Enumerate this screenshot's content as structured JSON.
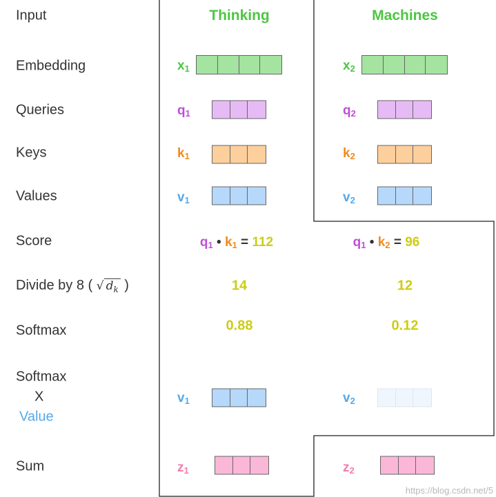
{
  "rows": {
    "input": "Input",
    "embedding": "Embedding",
    "queries": "Queries",
    "keys": "Keys",
    "values": "Values",
    "score": "Score",
    "divide_prefix": "Divide by 8 (",
    "divide_sqrt": "d",
    "divide_sqrt_sub": "k",
    "divide_suffix": ")",
    "softmax": "Softmax",
    "softmax_value_1": "Softmax",
    "softmax_value_2": "X",
    "softmax_value_3": "Value",
    "sum": "Sum"
  },
  "columns": {
    "thinking": {
      "header": "Thinking",
      "x": "x",
      "x_sub": "1",
      "q": "q",
      "q_sub": "1",
      "k": "k",
      "k_sub": "1",
      "v": "v",
      "v_sub": "1",
      "score_q": "q",
      "score_q_sub": "1",
      "score_dot": "•",
      "score_k": "k",
      "score_k_sub": "1",
      "score_eq": "=",
      "score": "112",
      "divided": "14",
      "softmax": "0.88",
      "wv": "v",
      "wv_sub": "1",
      "z": "z",
      "z_sub": "1"
    },
    "machines": {
      "header": "Machines",
      "x": "x",
      "x_sub": "2",
      "q": "q",
      "q_sub": "2",
      "k": "k",
      "k_sub": "2",
      "v": "v",
      "v_sub": "2",
      "score_q": "q",
      "score_q_sub": "1",
      "score_dot": "•",
      "score_k": "k",
      "score_k_sub": "2",
      "score_eq": "=",
      "score": "96",
      "divided": "12",
      "softmax": "0.12",
      "wv": "v",
      "wv_sub": "2",
      "z": "z",
      "z_sub": "2"
    }
  },
  "colors": {
    "embedding": "#a4e3a0",
    "query": "#e6bbf5",
    "key": "#fccf9c",
    "value": "#b6d8fb",
    "value_faded": "#f0f6fe",
    "output": "#fbb7d8",
    "numbers": "#cccc14",
    "header": "#4cc641"
  },
  "watermark": "https://blog.csdn.net/5"
}
